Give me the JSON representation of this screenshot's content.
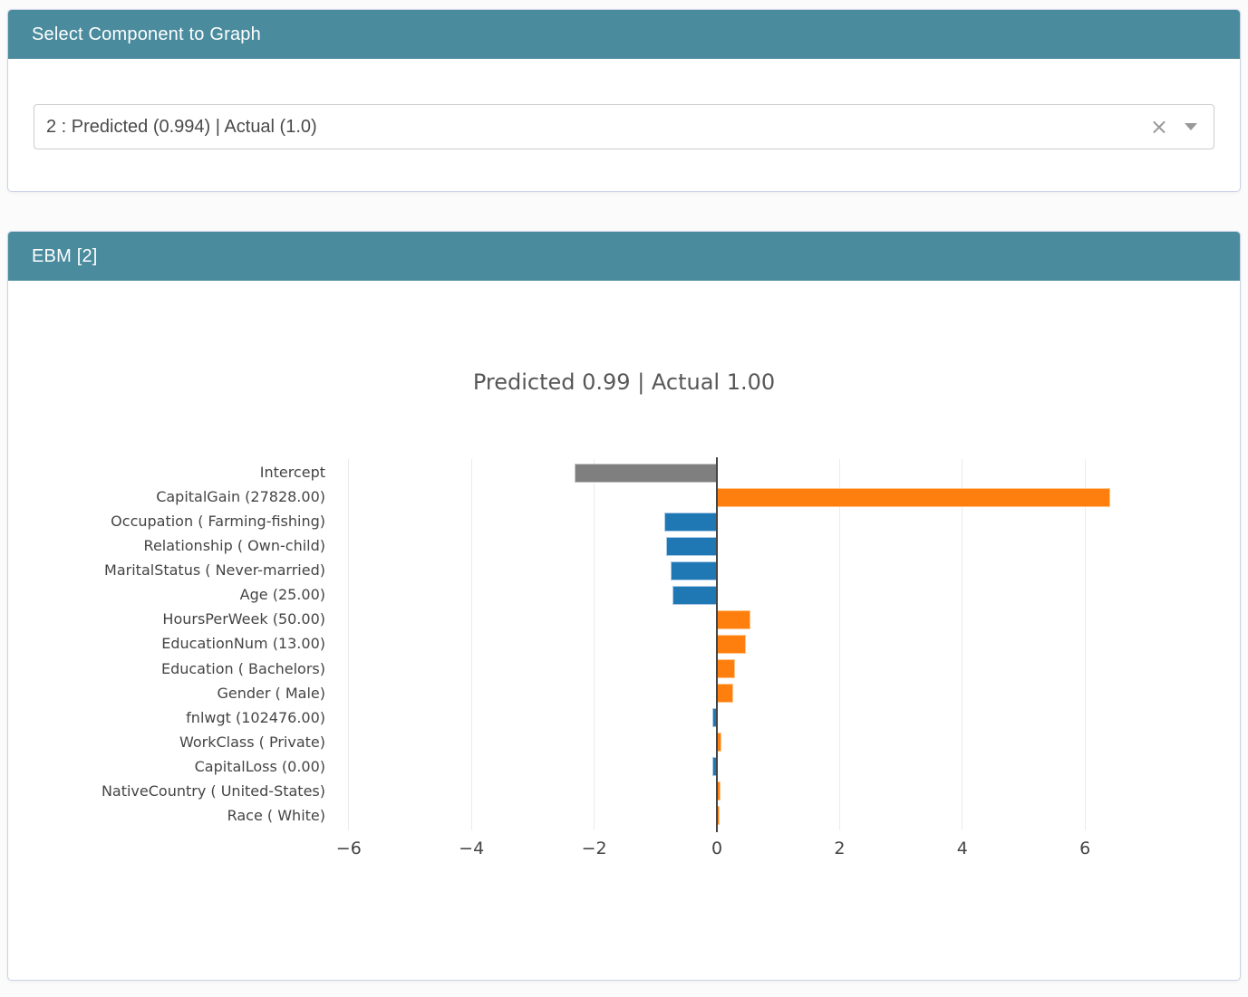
{
  "select_panel": {
    "title": "Select Component to Graph",
    "dropdown": {
      "value": "2 : Predicted (0.994) | Actual (1.0)",
      "clear_icon": "×"
    }
  },
  "ebm_panel": {
    "title": "EBM [2]"
  },
  "colors": {
    "header_bg": "#4a8b9e",
    "card_border": "#ccd3e8",
    "page_bg": "#fbfbfb",
    "grid": "#ebebeb",
    "zero_line": "#444444",
    "axis_text": "#444444",
    "title_text": "#575757",
    "icon_gray": "#999999"
  },
  "chart_data": {
    "type": "bar",
    "orientation": "horizontal",
    "title": "Predicted 0.99 | Actual 1.00",
    "xlabel": "",
    "ylabel": "",
    "xlim": [
      -6.2,
      7.4
    ],
    "grid": true,
    "legend": false,
    "x_ticks": [
      {
        "label": "−6",
        "value": -6
      },
      {
        "label": "−4",
        "value": -4
      },
      {
        "label": "−2",
        "value": -2
      },
      {
        "label": "0",
        "value": 0
      },
      {
        "label": "2",
        "value": 2
      },
      {
        "label": "4",
        "value": 4
      },
      {
        "label": "6",
        "value": 6
      }
    ],
    "items": [
      {
        "label": "Intercept",
        "value": -2.32,
        "color": "intercept"
      },
      {
        "label": "CapitalGain (27828.00)",
        "value": 6.41,
        "color": "positive"
      },
      {
        "label": "Occupation ( Farming-fishing)",
        "value": -0.85,
        "color": "negative"
      },
      {
        "label": "Relationship ( Own-child)",
        "value": -0.83,
        "color": "negative"
      },
      {
        "label": "MaritalStatus ( Never-married)",
        "value": -0.76,
        "color": "negative"
      },
      {
        "label": "Age (25.00)",
        "value": -0.73,
        "color": "negative"
      },
      {
        "label": "HoursPerWeek (50.00)",
        "value": 0.54,
        "color": "positive"
      },
      {
        "label": "EducationNum (13.00)",
        "value": 0.48,
        "color": "positive"
      },
      {
        "label": "Education ( Bachelors)",
        "value": 0.3,
        "color": "positive"
      },
      {
        "label": "Gender ( Male)",
        "value": 0.27,
        "color": "positive"
      },
      {
        "label": "fnlwgt (102476.00)",
        "value": -0.08,
        "color": "negative"
      },
      {
        "label": "WorkClass ( Private)",
        "value": 0.07,
        "color": "positive"
      },
      {
        "label": "CapitalLoss (0.00)",
        "value": -0.08,
        "color": "negative"
      },
      {
        "label": "NativeCountry ( United-States)",
        "value": 0.06,
        "color": "positive"
      },
      {
        "label": "Race ( White)",
        "value": 0.05,
        "color": "positive"
      }
    ],
    "palette": {
      "positive": {
        "fill": "#ff7f0e",
        "border": "#ffc58a"
      },
      "negative": {
        "fill": "#1f77b4",
        "border": "#a9c9e5"
      },
      "intercept": {
        "fill": "#7f7f7f",
        "border": "#c4c4c4"
      }
    }
  }
}
